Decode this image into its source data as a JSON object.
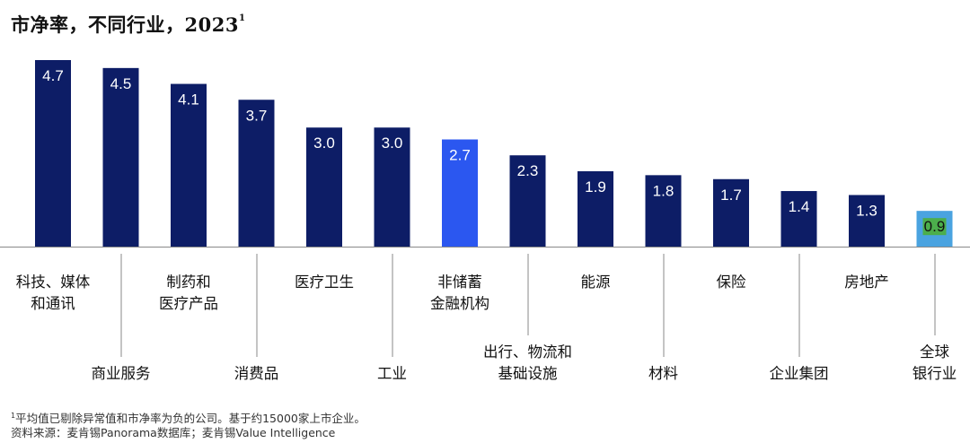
{
  "chart_data": {
    "type": "bar",
    "title": "市净率，不同行业，2023",
    "title_note_marker": "1",
    "categories": [
      "科技、媒体和通讯",
      "商业服务",
      "制药和医疗产品",
      "消费品",
      "医疗卫生",
      "工业",
      "非储蓄金融机构",
      "出行、物流和基础设施",
      "能源",
      "材料",
      "保险",
      "企业集团",
      "房地产",
      "全球银行业"
    ],
    "category_lines": [
      [
        "科技、媒体",
        "和通讯"
      ],
      [
        "商业服务"
      ],
      [
        "制药和",
        "医疗产品"
      ],
      [
        "消费品"
      ],
      [
        "医疗卫生"
      ],
      [
        "工业"
      ],
      [
        "非储蓄",
        "金融机构"
      ],
      [
        "出行、物流和",
        "基础设施"
      ],
      [
        "能源"
      ],
      [
        "材料"
      ],
      [
        "保险"
      ],
      [
        "企业集团"
      ],
      [
        "房地产"
      ],
      [
        "全球",
        "银行业"
      ]
    ],
    "label_row": [
      "upper",
      "lower",
      "upper",
      "lower",
      "upper",
      "lower",
      "upper",
      "lower",
      "upper",
      "lower",
      "upper",
      "lower",
      "upper",
      "lower"
    ],
    "values": [
      4.7,
      4.5,
      4.1,
      3.7,
      3.0,
      3.0,
      2.7,
      2.3,
      1.9,
      1.8,
      1.7,
      1.4,
      1.3,
      0.9
    ],
    "value_labels": [
      "4.7",
      "4.5",
      "4.1",
      "3.7",
      "3.0",
      "3.0",
      "2.7",
      "2.3",
      "1.9",
      "1.8",
      "1.7",
      "1.4",
      "1.3",
      "0.9"
    ],
    "colors": {
      "default": "#0d1d66",
      "highlight": "#2b57f0",
      "banks_fill": "#4aa3e0",
      "banks_label_bg": "#4cae4c",
      "label_text": "#ffffff",
      "banks_label_text": "#111111",
      "axis": "#888888"
    },
    "bar_style": [
      "default",
      "default",
      "default",
      "default",
      "default",
      "default",
      "highlight",
      "default",
      "default",
      "default",
      "default",
      "default",
      "default",
      "banks"
    ],
    "ylim": [
      0,
      5
    ],
    "grid": false,
    "xlabel": "",
    "ylabel": ""
  },
  "footnote": {
    "marker": "1",
    "line1": "平均值已剔除异常值和市净率为负的公司。基于约15000家上市企业。",
    "line2": "资料来源：麦肯锡Panorama数据库；麦肯锡Value Intelligence"
  }
}
